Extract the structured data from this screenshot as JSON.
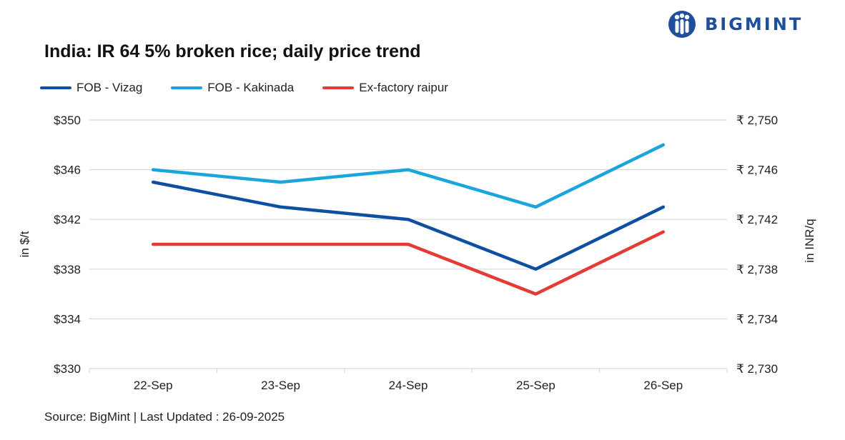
{
  "header": {
    "title": "India: IR 64 5% broken rice; daily price trend",
    "brand": "BIGMINT"
  },
  "footer": {
    "source": "Source: BigMint | Last Updated : 26-09-2025"
  },
  "colors": {
    "vizag": "#0d4fa0",
    "kakinada": "#1aa5dc",
    "raipur": "#e43b34",
    "grid": "#d9d9d9",
    "brand": "#1f4e9c"
  },
  "chart_data": {
    "type": "line",
    "title": "India: IR 64 5% broken rice; daily price trend",
    "categories": [
      "22-Sep",
      "23-Sep",
      "24-Sep",
      "25-Sep",
      "26-Sep"
    ],
    "series": [
      {
        "name": "FOB - Vizag",
        "axis": "left",
        "values": [
          345,
          343,
          342,
          338,
          343
        ]
      },
      {
        "name": "FOB - Kakinada",
        "axis": "left",
        "values": [
          346,
          345,
          346,
          343,
          348
        ]
      },
      {
        "name": "Ex-factory raipur",
        "axis": "left",
        "values": [
          340,
          340,
          340,
          336,
          341
        ]
      }
    ],
    "ylabel": "in $/t",
    "ylabel_right": "in INR/q",
    "ylim": [
      330,
      350
    ],
    "y_ticks": [
      330,
      334,
      338,
      342,
      346,
      350
    ],
    "y_tick_labels": [
      "$330",
      "$334",
      "$338",
      "$342",
      "$346",
      "$350"
    ],
    "ylim_right": [
      2730,
      2750
    ],
    "y_ticks_right": [
      2730,
      2734,
      2738,
      2742,
      2746,
      2750
    ],
    "y_tick_labels_right": [
      "₹ 2,730",
      "₹ 2,734",
      "₹ 2,738",
      "₹ 2,742",
      "₹ 2,746",
      "₹ 2,750"
    ],
    "grid": true,
    "legend": "top-left"
  }
}
